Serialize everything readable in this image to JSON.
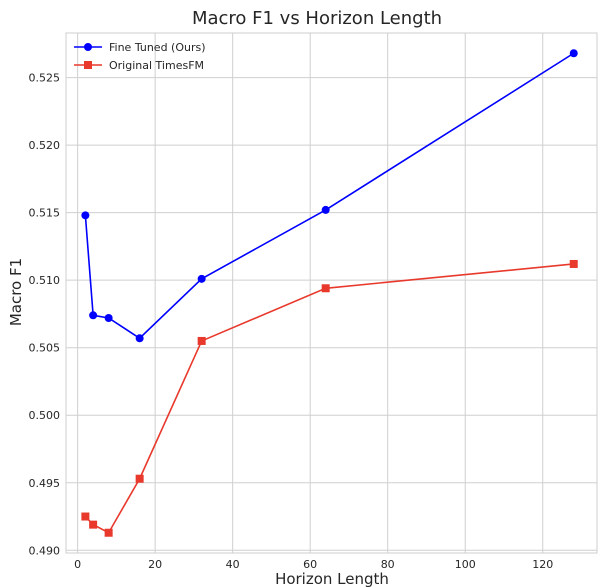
{
  "chart_data": {
    "type": "line",
    "title": "Macro F1 vs Horizon Length",
    "xlabel": "Horizon Length",
    "ylabel": "Macro F1",
    "xlim": [
      -3,
      134
    ],
    "ylim": [
      0.4898,
      0.5283
    ],
    "xticks": [
      0,
      20,
      40,
      60,
      80,
      100,
      120
    ],
    "yticks": [
      0.49,
      0.495,
      0.5,
      0.505,
      0.51,
      0.515,
      0.52,
      0.525
    ],
    "grid": true,
    "legend_position": "top-left",
    "series": [
      {
        "name": "Fine Tuned (Ours)",
        "color": "#0000ff",
        "marker": "circle",
        "x": [
          2,
          4,
          8,
          16,
          32,
          64,
          128
        ],
        "y": [
          0.5148,
          0.5074,
          0.5072,
          0.5057,
          0.5101,
          0.5152,
          0.5268
        ]
      },
      {
        "name": "Original TimesFM",
        "color": "#e8392c",
        "marker": "square",
        "x": [
          2,
          4,
          8,
          16,
          32,
          64,
          128
        ],
        "y": [
          0.4925,
          0.4919,
          0.4913,
          0.4953,
          0.5055,
          0.5094,
          0.5112
        ]
      }
    ]
  }
}
